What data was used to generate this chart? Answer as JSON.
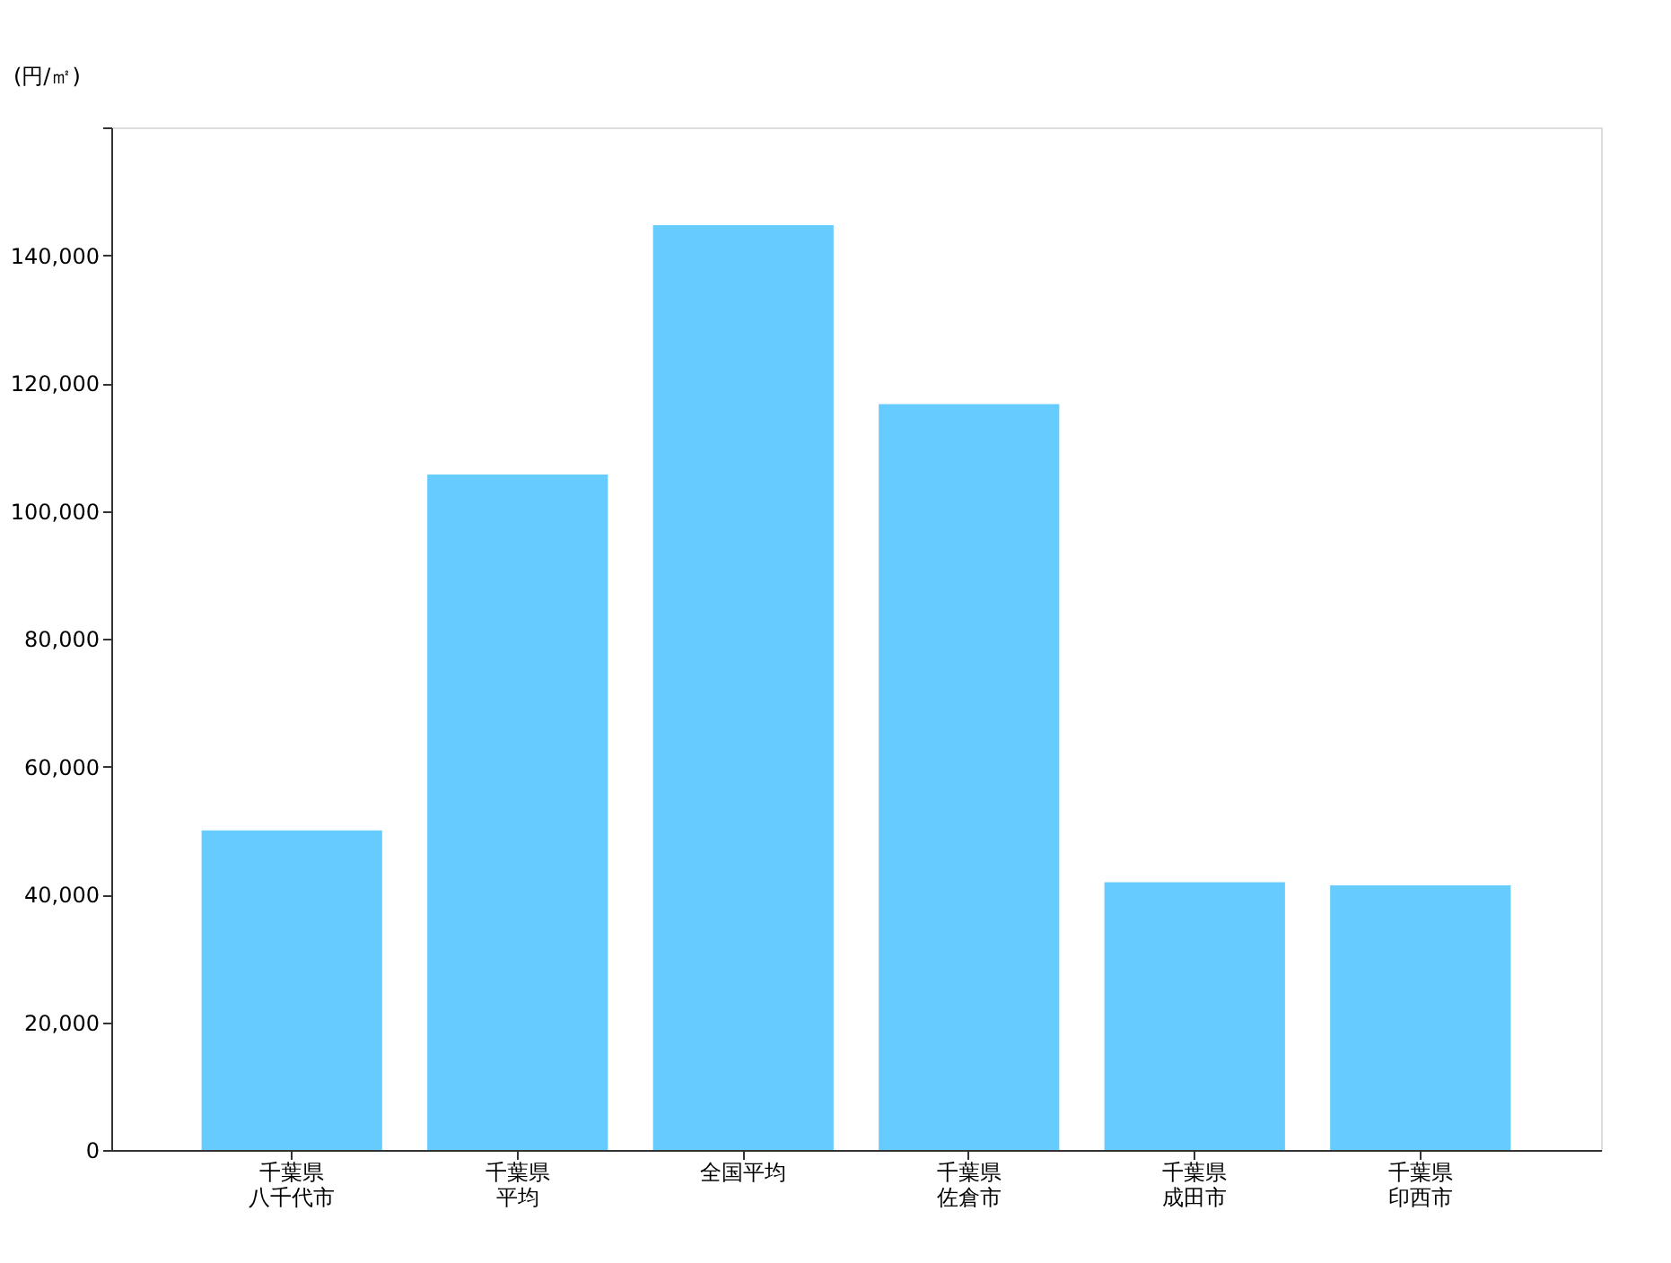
{
  "chart_data": {
    "type": "bar",
    "ylabel": "(円/㎡)",
    "categories": [
      "千葉県八千代市",
      "千葉県平均",
      "全国平均",
      "千葉県佐倉市",
      "千葉県成田市",
      "千葉県印西市"
    ],
    "values": [
      50000,
      105700,
      144700,
      116700,
      41900,
      41400
    ],
    "color": "#66ccff",
    "ylim": [
      0,
      160000
    ],
    "yticks": [
      0,
      {
        "value": 20000,
        "label": "20,000"
      },
      {
        "value": 40000,
        "label": "40,000"
      },
      {
        "value": 60000,
        "label": "60,000"
      },
      {
        "value": 80000,
        "label": "80,000"
      },
      {
        "value": 100000,
        "label": "100,000"
      },
      {
        "value": 120000,
        "label": "120,000"
      },
      {
        "value": 140000,
        "label": "140,000"
      },
      {
        "value": 160000,
        "label": null
      }
    ],
    "grid": false
  }
}
